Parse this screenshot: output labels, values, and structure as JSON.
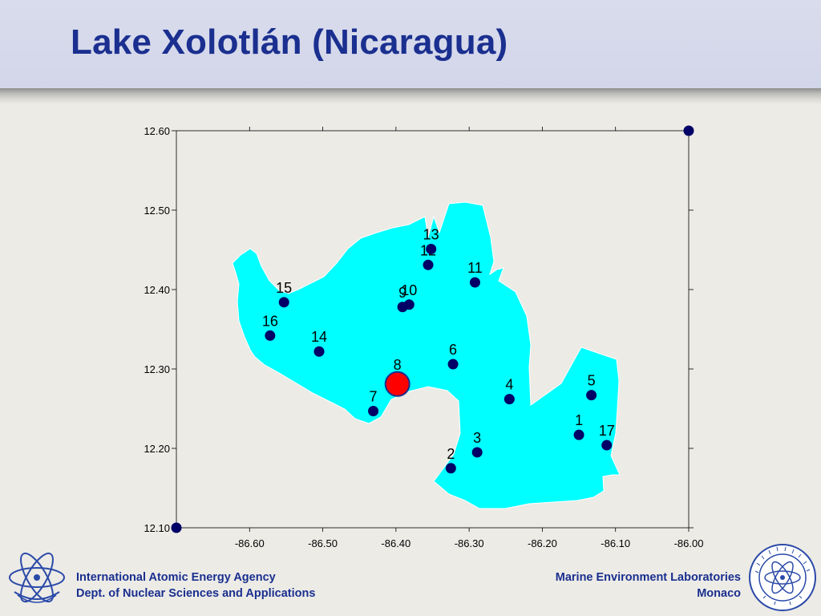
{
  "slide": {
    "title": "Lake Xolotlán (Nicaragua)"
  },
  "footer": {
    "left_line1": "International Atomic Energy Agency",
    "left_line2": "Dept. of Nuclear Sciences and Applications",
    "right_line1": "Marine Environment Laboratories",
    "right_line2": "Monaco"
  },
  "logos": {
    "left": "iaea-atom-logo",
    "right": "marine-environment-laboratory-seal"
  },
  "colors": {
    "title": "#1a2f8f",
    "lake_fill": "#00ffff",
    "station_dot": "#000066",
    "highlight_dot": "#ff0000",
    "highlight_outline": "#1a2f8f",
    "axis": "#000000"
  },
  "chart_data": {
    "type": "scatter",
    "xlim": [
      -86.7,
      -86.0
    ],
    "ylim": [
      12.1,
      12.6
    ],
    "x_ticks": [
      "-86.60",
      "-86.50",
      "-86.40",
      "-86.30",
      "-86.20",
      "-86.10",
      "-86.00"
    ],
    "y_ticks": [
      "12.10",
      "12.20",
      "12.30",
      "12.40",
      "12.50",
      "12.60"
    ],
    "background_shape": "Lake Xolotlán outline",
    "grid": false,
    "points": [
      {
        "label": "1",
        "x": -86.15,
        "y": 12.217
      },
      {
        "label": "2",
        "x": -86.325,
        "y": 12.175
      },
      {
        "label": "3",
        "x": -86.289,
        "y": 12.195
      },
      {
        "label": "4",
        "x": -86.245,
        "y": 12.262
      },
      {
        "label": "5",
        "x": -86.133,
        "y": 12.267
      },
      {
        "label": "6",
        "x": -86.322,
        "y": 12.306
      },
      {
        "label": "7",
        "x": -86.431,
        "y": 12.247
      },
      {
        "label": "8",
        "x": -86.398,
        "y": 12.281,
        "highlight": true
      },
      {
        "label": "9",
        "x": -86.391,
        "y": 12.378
      },
      {
        "label": "10",
        "x": -86.382,
        "y": 12.381
      },
      {
        "label": "11",
        "x": -86.292,
        "y": 12.409
      },
      {
        "label": "12",
        "x": -86.356,
        "y": 12.431
      },
      {
        "label": "13",
        "x": -86.352,
        "y": 12.451
      },
      {
        "label": "14",
        "x": -86.505,
        "y": 12.322
      },
      {
        "label": "15",
        "x": -86.553,
        "y": 12.384
      },
      {
        "label": "16",
        "x": -86.572,
        "y": 12.342
      },
      {
        "label": "17",
        "x": -86.112,
        "y": 12.204
      },
      {
        "label": "",
        "x": -86.0,
        "y": 12.6
      },
      {
        "label": "",
        "x": -86.7,
        "y": 12.1
      }
    ]
  }
}
